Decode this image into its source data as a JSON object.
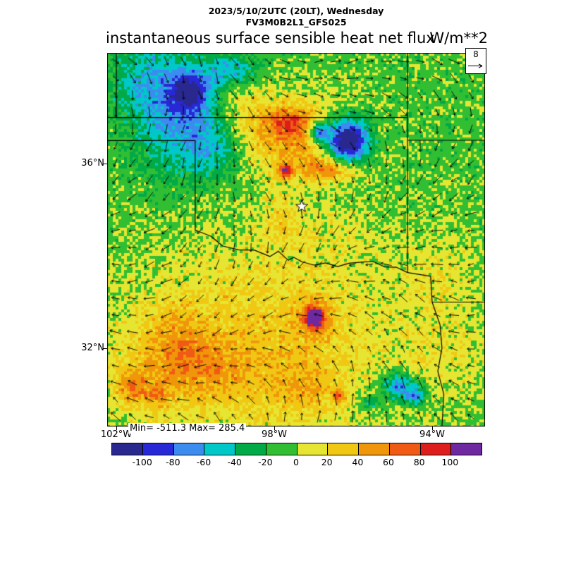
{
  "chart_data": {
    "type": "heatmap",
    "subtype": "filled-grid-with-wind-vectors",
    "datetime_line": "2023/5/10/2UTC (20LT), Wednesday",
    "model_line": "FV3M0B2L1_GFS025",
    "title": "instantaneous surface sensible heat net flux",
    "units": "W/m**2",
    "stat_label": "Min= -511.3 Max= 285.4",
    "min": -511.3,
    "max": 285.4,
    "reference_vector": {
      "label": "8",
      "value": 8
    },
    "x_axis": {
      "ticks": [
        {
          "label": "102°W",
          "nx": 0.0243
        },
        {
          "label": "98°W",
          "nx": 0.4422
        },
        {
          "label": "94°W",
          "nx": 0.8601
        }
      ]
    },
    "y_axis": {
      "ticks": [
        {
          "label": "36°N",
          "ny": 0.2962
        },
        {
          "label": "32°N",
          "ny": 0.7906
        }
      ]
    },
    "lon_range": [
      -102.2,
      -92.7
    ],
    "lat_range": [
      30.3,
      38.4
    ],
    "colorbar": {
      "levels": [
        -100,
        -80,
        -60,
        -40,
        -20,
        0,
        20,
        40,
        60,
        80,
        100
      ],
      "colors": [
        "#28288F",
        "#2828D7",
        "#3C8CF0",
        "#00C8C8",
        "#00AA46",
        "#32BE32",
        "#E6E632",
        "#F0C814",
        "#F0960A",
        "#F05A14",
        "#DC1E1E",
        "#6E28A0"
      ]
    },
    "field": {
      "cell": 4,
      "base": -8,
      "noise": [
        13,
        8
      ],
      "blobs": [
        {
          "x": 0.192,
          "y": 0.17,
          "rx": 0.085,
          "ry": 0.105,
          "v": -55
        },
        {
          "x": 0.216,
          "y": 0.1,
          "rx": 0.035,
          "ry": 0.035,
          "v": -75
        },
        {
          "x": 0.3,
          "y": 0.255,
          "rx": 0.065,
          "ry": 0.055,
          "v": -35
        },
        {
          "x": 0.09,
          "y": 0.066,
          "rx": 0.06,
          "ry": 0.07,
          "v": -30
        },
        {
          "x": 0.33,
          "y": 0.045,
          "rx": 0.05,
          "ry": 0.03,
          "v": -45
        },
        {
          "x": 0.49,
          "y": 0.226,
          "rx": 0.105,
          "ry": 0.075,
          "v": 55
        },
        {
          "x": 0.478,
          "y": 0.183,
          "rx": 0.038,
          "ry": 0.026,
          "v": 45
        },
        {
          "x": 0.59,
          "y": 0.31,
          "rx": 0.048,
          "ry": 0.022,
          "v": 55
        },
        {
          "x": 0.472,
          "y": 0.317,
          "rx": 0.013,
          "ry": 0.013,
          "v": 85
        },
        {
          "x": 0.634,
          "y": 0.236,
          "rx": 0.04,
          "ry": 0.042,
          "v": -140
        },
        {
          "x": 0.56,
          "y": 0.211,
          "rx": 0.018,
          "ry": 0.02,
          "v": -90
        },
        {
          "x": 0.36,
          "y": 0.165,
          "rx": 0.045,
          "ry": 0.075,
          "v": 22
        },
        {
          "x": 0.407,
          "y": 0.783,
          "rx": 0.27,
          "ry": 0.2,
          "v": 38
        },
        {
          "x": 0.276,
          "y": 0.849,
          "rx": 0.08,
          "ry": 0.05,
          "v": 26
        },
        {
          "x": 0.192,
          "y": 0.764,
          "rx": 0.05,
          "ry": 0.06,
          "v": 24
        },
        {
          "x": 0.519,
          "y": 0.896,
          "rx": 0.06,
          "ry": 0.04,
          "v": 24
        },
        {
          "x": 0.12,
          "y": 0.86,
          "rx": 0.08,
          "ry": 0.1,
          "v": 20
        },
        {
          "x": 0.549,
          "y": 0.709,
          "rx": 0.014,
          "ry": 0.016,
          "v": 115
        },
        {
          "x": 0.549,
          "y": 0.709,
          "rx": 0.033,
          "ry": 0.036,
          "v": 45
        },
        {
          "x": 0.77,
          "y": 0.892,
          "rx": 0.03,
          "ry": 0.025,
          "v": -75
        },
        {
          "x": 0.817,
          "y": 0.919,
          "rx": 0.022,
          "ry": 0.02,
          "v": -60
        },
        {
          "x": 0.696,
          "y": 0.938,
          "rx": 0.02,
          "ry": 0.015,
          "v": -40
        },
        {
          "x": 0.612,
          "y": 0.919,
          "rx": 0.012,
          "ry": 0.012,
          "v": 58
        },
        {
          "x": 0.062,
          "y": 0.892,
          "rx": 0.025,
          "ry": 0.03,
          "v": 42
        },
        {
          "x": 0.127,
          "y": 0.915,
          "rx": 0.02,
          "ry": 0.02,
          "v": 36
        },
        {
          "x": 0.463,
          "y": 0.443,
          "rx": 0.035,
          "ry": 0.05,
          "v": 22
        },
        {
          "x": 0.91,
          "y": 0.76,
          "rx": 0.09,
          "ry": 0.12,
          "v": 15
        },
        {
          "x": 0.88,
          "y": 0.55,
          "rx": 0.06,
          "ry": 0.07,
          "v": 12
        },
        {
          "x": 0.62,
          "y": 0.48,
          "rx": 0.1,
          "ry": 0.06,
          "v": 10
        }
      ]
    },
    "wind": {
      "spacing": 24,
      "base_length": 13,
      "angle_top": 20,
      "angle_bottom": 250,
      "swirl": 38,
      "jitter": 28
    },
    "borders": [
      [
        [
          0.0,
          0.173
        ],
        [
          0.795,
          0.173
        ]
      ],
      [
        [
          0.0243,
          0.0
        ],
        [
          0.0243,
          0.173
        ]
      ],
      [
        [
          0.0,
          0.2345
        ],
        [
          0.233,
          0.2345
        ]
      ],
      [
        [
          0.233,
          0.2345
        ],
        [
          0.233,
          0.474
        ]
      ],
      [
        [
          0.233,
          0.474
        ],
        [
          0.275,
          0.491
        ],
        [
          0.306,
          0.517
        ],
        [
          0.348,
          0.527
        ],
        [
          0.39,
          0.528
        ],
        [
          0.431,
          0.545
        ],
        [
          0.453,
          0.531
        ],
        [
          0.479,
          0.555
        ],
        [
          0.494,
          0.547
        ],
        [
          0.515,
          0.559
        ],
        [
          0.547,
          0.568
        ],
        [
          0.578,
          0.562
        ],
        [
          0.61,
          0.572
        ],
        [
          0.64,
          0.563
        ],
        [
          0.672,
          0.56
        ],
        [
          0.703,
          0.558
        ],
        [
          0.735,
          0.573
        ],
        [
          0.766,
          0.574
        ],
        [
          0.795,
          0.588
        ]
      ],
      [
        [
          0.795,
          0.0
        ],
        [
          0.795,
          0.588
        ]
      ],
      [
        [
          0.795,
          0.588
        ],
        [
          0.856,
          0.598
        ],
        [
          0.86,
          0.667
        ],
        [
          0.881,
          0.728
        ],
        [
          0.886,
          0.79
        ],
        [
          0.875,
          0.852
        ],
        [
          0.891,
          0.914
        ],
        [
          0.886,
          1.0
        ]
      ],
      [
        [
          0.86,
          0.667
        ],
        [
          1.0,
          0.667
        ]
      ],
      [
        [
          0.795,
          0.234
        ],
        [
          1.0,
          0.234
        ]
      ]
    ],
    "marker": {
      "type": "star",
      "nx": 0.515,
      "ny": 0.411
    }
  }
}
